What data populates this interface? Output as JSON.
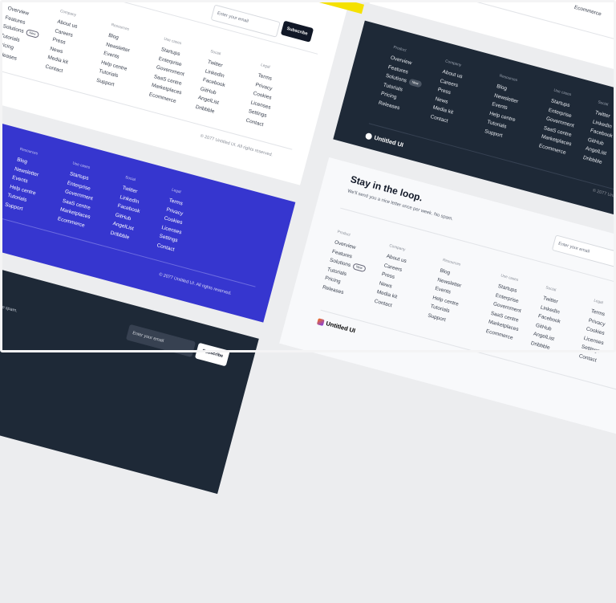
{
  "columns": [
    {
      "heading": "Product",
      "items": [
        "Overview",
        "Features",
        "Solutions",
        "Tutorials",
        "Pricing",
        "Releases"
      ],
      "badge": "New"
    },
    {
      "heading": "Company",
      "items": [
        "About us",
        "Careers",
        "Press",
        "News",
        "Media kit",
        "Contact"
      ]
    },
    {
      "heading": "Resources",
      "items": [
        "Blog",
        "Newsletter",
        "Events",
        "Help centre",
        "Tutorials",
        "Support"
      ]
    },
    {
      "heading": "Use cases",
      "items": [
        "Startups",
        "Enterprise",
        "Government",
        "SaaS centre",
        "Marketplaces",
        "Ecommerce"
      ]
    },
    {
      "heading": "Social",
      "items": [
        "Twitter",
        "LinkedIn",
        "Facebook",
        "GitHub",
        "AngelList",
        "Dribbble"
      ]
    },
    {
      "heading": "Legal",
      "items": [
        "Terms",
        "Privacy",
        "Cookies",
        "Licenses",
        "Settings",
        "Contact"
      ]
    }
  ],
  "brand": "Untitled UI",
  "copyright": "© 2077 Untitled UI. All rights reserved.",
  "newsletter": {
    "title": "Stay in the loop.",
    "subtitle": "We'll send you a nice letter once per week. No spam.",
    "email_placeholder": "Enter your email",
    "subscribe_label": "Subscribe"
  },
  "colors": {
    "blue_footer": "#3636cf",
    "dark_footer": "#1e2937",
    "accent_yellow": "#f5e100"
  }
}
